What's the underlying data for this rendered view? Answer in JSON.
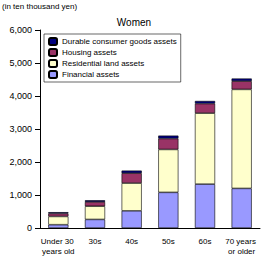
{
  "chart_data": {
    "type": "bar",
    "title": "Women",
    "y_label": "(in ten thousand yen)",
    "categories": [
      "Under 30 years old",
      "30s",
      "40s",
      "50s",
      "60s",
      "70 years or older"
    ],
    "series": [
      {
        "name": "Financial assets",
        "color": "#9999ff",
        "values": [
          100,
          260,
          520,
          1080,
          1330,
          1200
        ]
      },
      {
        "name": "Residential land assets",
        "color": "#ffffcc",
        "values": [
          250,
          400,
          840,
          1300,
          2150,
          3000
        ]
      },
      {
        "name": "Housing assets",
        "color": "#993366",
        "values": [
          90,
          130,
          300,
          330,
          290,
          250
        ]
      },
      {
        "name": "Durable consumer goods assets",
        "color": "#000080",
        "values": [
          40,
          50,
          80,
          90,
          80,
          80
        ]
      }
    ],
    "stacked": true,
    "ylim": [
      0,
      6000
    ],
    "yticks": [
      0,
      1000,
      2000,
      3000,
      4000,
      5000,
      6000
    ],
    "grid": false,
    "legend": "top-left"
  }
}
